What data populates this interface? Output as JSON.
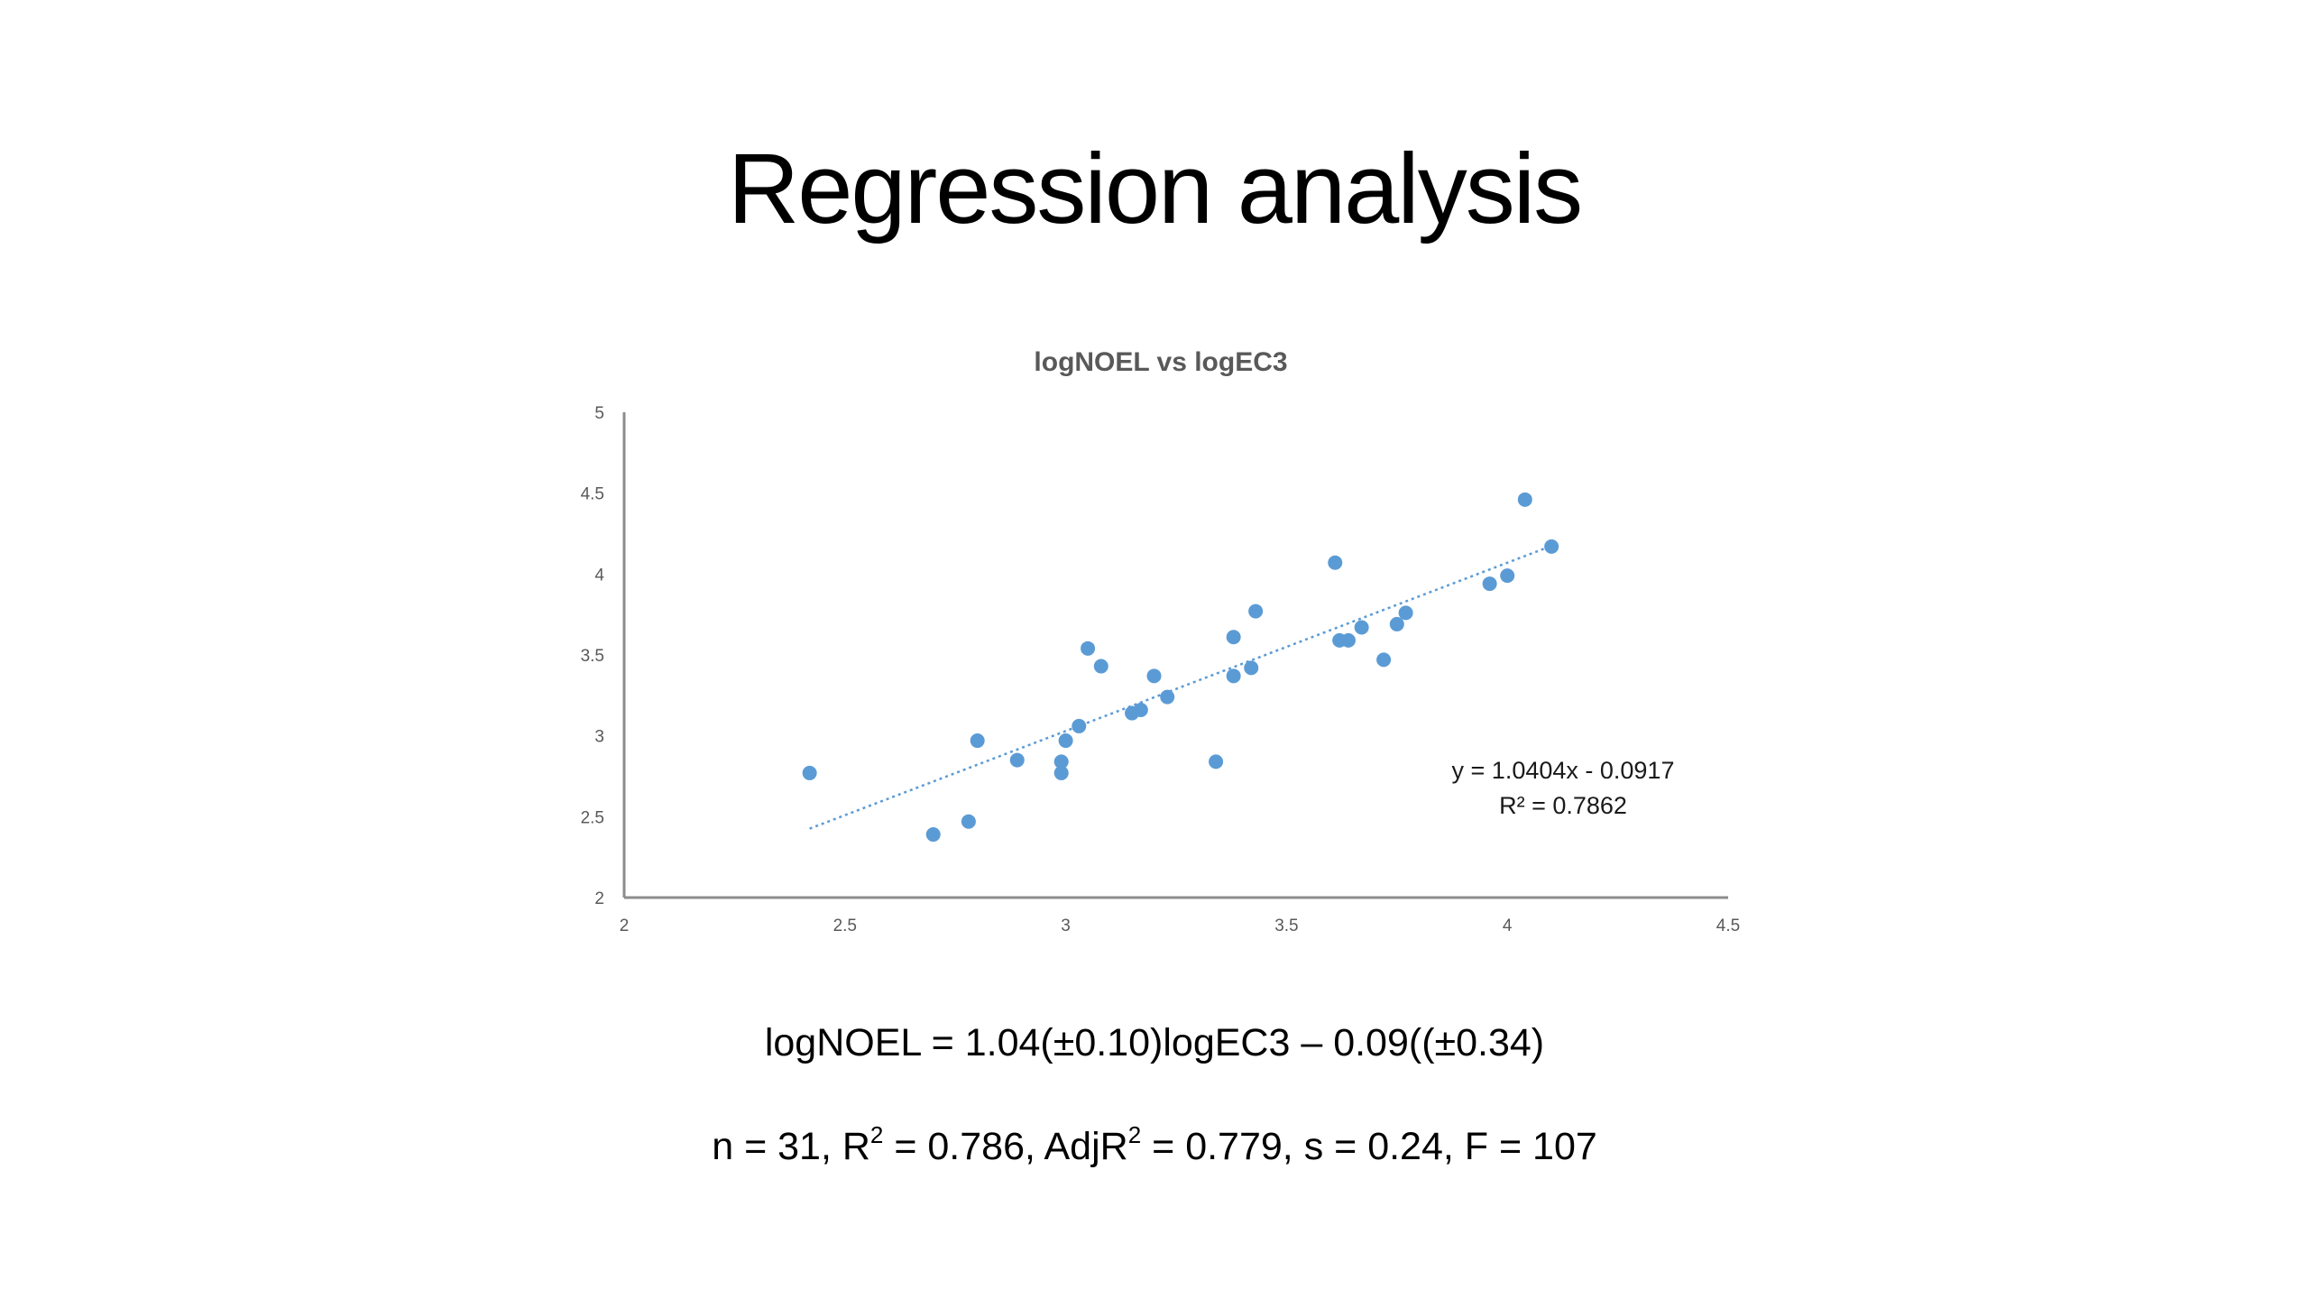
{
  "slide": {
    "title": "Regression analysis"
  },
  "equations": {
    "main": "logNOEL = 1.04(±0.10)logEC3 – 0.09((±0.34)",
    "stats": {
      "n_part": "n = 31, R",
      "r2_part": " = 0.786, AdjR",
      "rest_part": " = 0.779, s = 0.24, F = 107",
      "superscript": "2"
    }
  },
  "chart_data": {
    "type": "scatter",
    "title": "logNOEL vs logEC3",
    "xlabel": "",
    "ylabel": "",
    "xlim": [
      2,
      4.5
    ],
    "ylim": [
      2,
      5
    ],
    "x_ticks": [
      "2",
      "2.5",
      "3",
      "3.5",
      "4",
      "4.5"
    ],
    "y_ticks": [
      "2",
      "2.5",
      "3",
      "3.5",
      "4",
      "4.5",
      "5"
    ],
    "grid": false,
    "marker_color": "#5B9BD5",
    "trendline": {
      "slope": 1.0404,
      "intercept": -0.0917,
      "x_range": [
        2.42,
        4.1
      ],
      "equation_label": "y = 1.0404x - 0.0917",
      "r2_label": "R² = 0.7862",
      "style": "dotted"
    },
    "points": [
      {
        "x": 2.42,
        "y": 2.77
      },
      {
        "x": 2.7,
        "y": 2.39
      },
      {
        "x": 2.78,
        "y": 2.47
      },
      {
        "x": 2.8,
        "y": 2.97
      },
      {
        "x": 2.89,
        "y": 2.85
      },
      {
        "x": 2.99,
        "y": 2.77
      },
      {
        "x": 2.99,
        "y": 2.84
      },
      {
        "x": 3.0,
        "y": 2.97
      },
      {
        "x": 3.03,
        "y": 3.06
      },
      {
        "x": 3.05,
        "y": 3.54
      },
      {
        "x": 3.08,
        "y": 3.43
      },
      {
        "x": 3.15,
        "y": 3.14
      },
      {
        "x": 3.17,
        "y": 3.16
      },
      {
        "x": 3.2,
        "y": 3.37
      },
      {
        "x": 3.23,
        "y": 3.24
      },
      {
        "x": 3.34,
        "y": 2.84
      },
      {
        "x": 3.38,
        "y": 3.61
      },
      {
        "x": 3.38,
        "y": 3.37
      },
      {
        "x": 3.42,
        "y": 3.42
      },
      {
        "x": 3.43,
        "y": 3.77
      },
      {
        "x": 3.61,
        "y": 4.07
      },
      {
        "x": 3.62,
        "y": 3.59
      },
      {
        "x": 3.64,
        "y": 3.59
      },
      {
        "x": 3.67,
        "y": 3.67
      },
      {
        "x": 3.72,
        "y": 3.47
      },
      {
        "x": 3.75,
        "y": 3.69
      },
      {
        "x": 3.77,
        "y": 3.76
      },
      {
        "x": 3.96,
        "y": 3.94
      },
      {
        "x": 4.0,
        "y": 3.99
      },
      {
        "x": 4.04,
        "y": 4.46
      },
      {
        "x": 4.1,
        "y": 4.17
      }
    ]
  }
}
